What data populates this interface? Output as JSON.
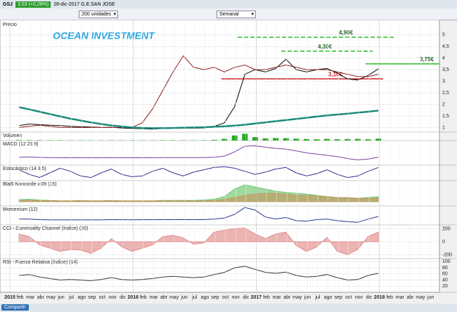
{
  "toolbar": {
    "symbol": "GSJ",
    "quote": "3,53 (+0,28%)",
    "info": "28-dic-2017 G.E.SAN JOSE",
    "units": "200 unidades",
    "period": "Semanal"
  },
  "footer": {
    "button": "Compartir"
  },
  "time_axis": {
    "labels": [
      "2015",
      "feb",
      "mar",
      "abr",
      "may",
      "jun",
      "jul",
      "ago",
      "sep",
      "oct",
      "nov",
      "dic",
      "2016",
      "feb",
      "mar",
      "abr",
      "may",
      "jun",
      "jul",
      "ago",
      "sep",
      "oct",
      "nov",
      "dic",
      "2017",
      "feb",
      "mar",
      "abr",
      "may",
      "jun",
      "jul",
      "ago",
      "sep",
      "oct",
      "nov",
      "dic",
      "2018",
      "feb",
      "mar",
      "abr",
      "may",
      "jun"
    ]
  },
  "chart_data": [
    {
      "type": "line",
      "title": "Precio",
      "watermark": "OCEAN INVESTMENT",
      "ylim": [
        0.8,
        5.6
      ],
      "yticks": [
        1,
        {
          "value": 1.5,
          "label": "1,5"
        },
        2,
        {
          "value": 2.5,
          "label": "2,5"
        },
        3,
        {
          "value": 3.5,
          "label": "3,5"
        },
        4,
        {
          "value": 4.5,
          "label": "4,5"
        },
        5
      ],
      "annotations": [
        {
          "label": "4,90€",
          "value": 4.9,
          "color": "#22bb22"
        },
        {
          "label": "4,30€",
          "value": 4.3,
          "color": "#22bb22"
        },
        {
          "label": "3,75€",
          "value": 3.75,
          "color": "#22bb22"
        },
        {
          "label": "3,10€",
          "value": 3.1,
          "color": "#cc2222"
        }
      ],
      "series": [
        {
          "color": "#000000",
          "values": [
            1.08,
            1.15,
            1.12,
            1.1,
            1.08,
            1.05,
            1.03,
            1.02,
            1.0,
            1.01,
            0.98,
            0.96,
            0.95,
            0.93,
            0.96,
            0.97,
            0.98,
            0.97,
            0.98,
            1.05,
            1.2,
            1.9,
            3.3,
            3.5,
            3.4,
            3.55,
            3.95,
            3.5,
            3.4,
            3.5,
            3.55,
            3.35,
            3.1,
            3.05,
            3.25,
            3.53
          ]
        },
        {
          "color": "#8b1a1a",
          "values": [
            1.0,
            1.05,
            1.1,
            1.05,
            1.0,
            1.0,
            1.0,
            1.0,
            1.0,
            1.0,
            1.0,
            1.0,
            1.2,
            1.8,
            2.6,
            3.4,
            4.1,
            3.6,
            3.5,
            3.6,
            3.4,
            3.6,
            3.7,
            3.5,
            3.5,
            3.6,
            3.7,
            3.6,
            3.5,
            3.5,
            3.5,
            3.4,
            3.3,
            3.2,
            3.2,
            3.3
          ]
        },
        {
          "color": "#1a8a7a",
          "values": [
            1.88,
            1.78,
            1.68,
            1.58,
            1.48,
            1.38,
            1.3,
            1.22,
            1.15,
            1.09,
            1.04,
            1.0,
            0.98,
            0.97,
            0.97,
            0.98,
            0.99,
            1.0,
            1.01,
            1.03,
            1.05,
            1.08,
            1.12,
            1.17,
            1.22,
            1.27,
            1.32,
            1.37,
            1.42,
            1.47,
            1.52,
            1.56,
            1.6,
            1.64,
            1.68,
            1.73
          ]
        }
      ]
    },
    {
      "type": "bar",
      "title": "Volumen",
      "ylim": [
        0,
        100
      ],
      "color": "#22aa22",
      "values": [
        6,
        5,
        5,
        4,
        4,
        3,
        3,
        3,
        3,
        4,
        3,
        3,
        3,
        3,
        4,
        4,
        4,
        3,
        4,
        8,
        20,
        60,
        80,
        40,
        25,
        30,
        28,
        22,
        18,
        15,
        20,
        15,
        18,
        20,
        15,
        22
      ]
    },
    {
      "type": "line",
      "title": "MACD (12 26 9)",
      "ylim": [
        -0.4,
        0.9
      ],
      "series": [
        {
          "color": "#7a3a9a",
          "values": [
            0.02,
            0.03,
            0.01,
            0,
            -0.01,
            -0.01,
            -0.01,
            -0.01,
            -0.01,
            0,
            -0.01,
            -0.01,
            -0.01,
            -0.01,
            0,
            0,
            0,
            0,
            0,
            0.02,
            0.08,
            0.3,
            0.6,
            0.62,
            0.55,
            0.48,
            0.45,
            0.35,
            0.25,
            0.18,
            0.12,
            0.05,
            -0.05,
            -0.12,
            -0.08,
            0.02
          ]
        }
      ]
    },
    {
      "type": "line",
      "title": "Estocástico (14 3 5)",
      "ylim": [
        0,
        100
      ],
      "series": [
        {
          "color": "#2a2a8a",
          "values": [
            70,
            40,
            20,
            50,
            80,
            60,
            30,
            20,
            50,
            75,
            40,
            25,
            30,
            60,
            80,
            50,
            30,
            55,
            70,
            85,
            90,
            80,
            60,
            40,
            55,
            75,
            85,
            50,
            30,
            45,
            70,
            40,
            20,
            30,
            60,
            85
          ]
        }
      ]
    },
    {
      "type": "area",
      "title": "Blai5 Koncorde v.09 (15)",
      "ylim": [
        -10,
        50
      ],
      "series": [
        {
          "color": "#5fbf5f",
          "values": [
            5,
            6,
            4,
            3,
            2,
            2,
            3,
            2,
            2,
            3,
            2,
            2,
            2,
            2,
            3,
            3,
            3,
            3,
            4,
            6,
            12,
            30,
            40,
            35,
            30,
            25,
            22,
            20,
            18,
            15,
            12,
            10,
            8,
            8,
            10,
            12
          ]
        },
        {
          "color": "#c8915a",
          "values": [
            3,
            3,
            2,
            2,
            2,
            2,
            2,
            2,
            2,
            2,
            2,
            2,
            2,
            2,
            2,
            2,
            2,
            2,
            2,
            3,
            5,
            10,
            15,
            18,
            20,
            20,
            18,
            15,
            15,
            14,
            12,
            10,
            10,
            8,
            8,
            8
          ]
        }
      ]
    },
    {
      "type": "line",
      "title": "Momentum (12)",
      "ylim": [
        -1,
        2.6
      ],
      "series": [
        {
          "color": "#223388",
          "values": [
            0.1,
            0.1,
            0,
            -0.05,
            -0.05,
            -0.05,
            -0.05,
            -0.05,
            -0.05,
            0,
            -0.02,
            -0.03,
            -0.02,
            -0.02,
            0,
            0,
            0,
            0,
            0,
            0.1,
            0.3,
            1.0,
            2.3,
            1.8,
            0.5,
            0.1,
            0.4,
            -0.2,
            -0.3,
            0,
            0.1,
            -0.2,
            -0.4,
            -0.5,
            0.1,
            0.6
          ]
        }
      ]
    },
    {
      "type": "area",
      "title": "CCI - Commodity Channel (índice) (20)",
      "ylim": [
        -260,
        260
      ],
      "yticks": [
        200,
        0,
        -200
      ],
      "series": [
        {
          "color": "#e08080",
          "values": [
            120,
            80,
            -50,
            -100,
            -150,
            -120,
            -130,
            -180,
            -100,
            50,
            -80,
            -150,
            -100,
            -50,
            80,
            100,
            60,
            -40,
            -20,
            150,
            180,
            200,
            210,
            120,
            50,
            120,
            150,
            -60,
            -150,
            -80,
            70,
            -150,
            -200,
            -120,
            80,
            150
          ]
        }
      ]
    },
    {
      "type": "line",
      "title": "RSI - Fuerza Relativa (índice) (14)",
      "ylim": [
        0,
        110
      ],
      "yticks": [
        100,
        80,
        60,
        40,
        20
      ],
      "series": [
        {
          "color": "#333333",
          "values": [
            55,
            58,
            50,
            45,
            40,
            42,
            40,
            38,
            42,
            48,
            42,
            40,
            42,
            45,
            50,
            52,
            50,
            48,
            50,
            58,
            65,
            80,
            85,
            75,
            65,
            62,
            66,
            55,
            50,
            52,
            58,
            48,
            40,
            42,
            55,
            62
          ]
        }
      ]
    }
  ]
}
